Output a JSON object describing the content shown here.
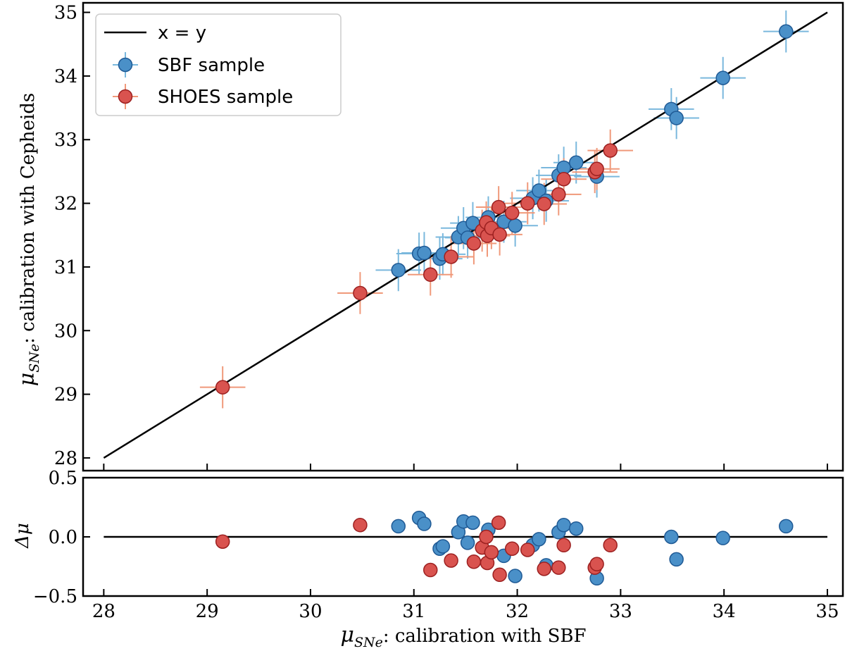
{
  "chart_data": [
    {
      "type": "scatter",
      "panel": "main",
      "title": "",
      "xlabel": "",
      "ylabel": "μSNe: calibration with Cepheids",
      "ylabel_parts": {
        "mu": "μ",
        "sub": "SNe",
        "rest": ": calibration with Cepheids"
      },
      "xlim": [
        27.8,
        35.15
      ],
      "ylim": [
        27.8,
        35.15
      ],
      "xticks": [
        28,
        29,
        30,
        31,
        32,
        33,
        34,
        35
      ],
      "yticks": [
        28,
        29,
        30,
        31,
        32,
        33,
        34,
        35
      ],
      "show_x_tick_labels": false,
      "reference_line": {
        "label": "x = y",
        "x": [
          28,
          35
        ],
        "y": [
          28,
          35
        ],
        "color": "#000000"
      },
      "legend": {
        "placement": "top-left",
        "entries": [
          {
            "label": "x = y",
            "kind": "line",
            "color": "#000000"
          },
          {
            "label": "SBF sample",
            "kind": "marker",
            "series": "SBF sample"
          },
          {
            "label": "SHOES sample",
            "kind": "marker",
            "series": "SHOES sample"
          }
        ]
      },
      "series": [
        {
          "name": "SBF sample",
          "marker_color": "#4a90c8",
          "edge_color": "#1f5a95",
          "error_color": "#7ab8dd",
          "points": [
            {
              "x": 30.85,
              "y": 30.95,
              "xerr": 0.22,
              "yerr": 0.33
            },
            {
              "x": 31.05,
              "y": 31.21,
              "xerr": 0.22,
              "yerr": 0.33
            },
            {
              "x": 31.1,
              "y": 31.22,
              "xerr": 0.22,
              "yerr": 0.33
            },
            {
              "x": 31.25,
              "y": 31.13,
              "xerr": 0.22,
              "yerr": 0.33
            },
            {
              "x": 31.28,
              "y": 31.2,
              "xerr": 0.22,
              "yerr": 0.33
            },
            {
              "x": 31.43,
              "y": 31.47,
              "xerr": 0.22,
              "yerr": 0.33
            },
            {
              "x": 31.48,
              "y": 31.61,
              "xerr": 0.22,
              "yerr": 0.33
            },
            {
              "x": 31.52,
              "y": 31.46,
              "xerr": 0.22,
              "yerr": 0.33
            },
            {
              "x": 31.57,
              "y": 31.69,
              "xerr": 0.22,
              "yerr": 0.33
            },
            {
              "x": 31.72,
              "y": 31.78,
              "xerr": 0.22,
              "yerr": 0.33
            },
            {
              "x": 31.87,
              "y": 31.71,
              "xerr": 0.22,
              "yerr": 0.33
            },
            {
              "x": 31.98,
              "y": 31.65,
              "xerr": 0.22,
              "yerr": 0.33
            },
            {
              "x": 32.15,
              "y": 32.08,
              "xerr": 0.22,
              "yerr": 0.33
            },
            {
              "x": 32.21,
              "y": 32.2,
              "xerr": 0.22,
              "yerr": 0.33
            },
            {
              "x": 32.28,
              "y": 32.04,
              "xerr": 0.22,
              "yerr": 0.33
            },
            {
              "x": 32.4,
              "y": 32.44,
              "xerr": 0.22,
              "yerr": 0.33
            },
            {
              "x": 32.45,
              "y": 32.56,
              "xerr": 0.22,
              "yerr": 0.33
            },
            {
              "x": 32.57,
              "y": 32.64,
              "xerr": 0.22,
              "yerr": 0.33
            },
            {
              "x": 32.77,
              "y": 32.42,
              "xerr": 0.22,
              "yerr": 0.33
            },
            {
              "x": 33.49,
              "y": 33.48,
              "xerr": 0.22,
              "yerr": 0.33
            },
            {
              "x": 33.54,
              "y": 33.34,
              "xerr": 0.22,
              "yerr": 0.33
            },
            {
              "x": 33.99,
              "y": 33.97,
              "xerr": 0.22,
              "yerr": 0.33
            },
            {
              "x": 34.6,
              "y": 34.7,
              "xerr": 0.22,
              "yerr": 0.33
            }
          ]
        },
        {
          "name": "SHOES sample",
          "marker_color": "#d9534f",
          "edge_color": "#9c2020",
          "error_color": "#f0997a",
          "points": [
            {
              "x": 29.15,
              "y": 29.11,
              "xerr": 0.22,
              "yerr": 0.33
            },
            {
              "x": 30.48,
              "y": 30.59,
              "xerr": 0.22,
              "yerr": 0.33
            },
            {
              "x": 31.16,
              "y": 30.88,
              "xerr": 0.22,
              "yerr": 0.33
            },
            {
              "x": 31.36,
              "y": 31.16,
              "xerr": 0.22,
              "yerr": 0.33
            },
            {
              "x": 31.58,
              "y": 31.37,
              "xerr": 0.22,
              "yerr": 0.33
            },
            {
              "x": 31.66,
              "y": 31.57,
              "xerr": 0.22,
              "yerr": 0.33
            },
            {
              "x": 31.7,
              "y": 31.7,
              "xerr": 0.22,
              "yerr": 0.33
            },
            {
              "x": 31.71,
              "y": 31.49,
              "xerr": 0.22,
              "yerr": 0.33
            },
            {
              "x": 31.75,
              "y": 31.61,
              "xerr": 0.22,
              "yerr": 0.33
            },
            {
              "x": 31.82,
              "y": 31.94,
              "xerr": 0.22,
              "yerr": 0.33
            },
            {
              "x": 31.83,
              "y": 31.51,
              "xerr": 0.22,
              "yerr": 0.33
            },
            {
              "x": 31.95,
              "y": 31.85,
              "xerr": 0.22,
              "yerr": 0.33
            },
            {
              "x": 32.1,
              "y": 32.0,
              "xerr": 0.22,
              "yerr": 0.33
            },
            {
              "x": 32.26,
              "y": 31.99,
              "xerr": 0.22,
              "yerr": 0.33
            },
            {
              "x": 32.4,
              "y": 32.14,
              "xerr": 0.22,
              "yerr": 0.33
            },
            {
              "x": 32.45,
              "y": 32.38,
              "xerr": 0.22,
              "yerr": 0.33
            },
            {
              "x": 32.75,
              "y": 32.49,
              "xerr": 0.22,
              "yerr": 0.33
            },
            {
              "x": 32.77,
              "y": 32.54,
              "xerr": 0.22,
              "yerr": 0.33
            },
            {
              "x": 32.9,
              "y": 32.83,
              "xerr": 0.22,
              "yerr": 0.33
            }
          ]
        }
      ]
    },
    {
      "type": "scatter",
      "panel": "residual",
      "title": "",
      "xlabel": "μSNe: calibration with SBF",
      "xlabel_parts": {
        "mu": "μ",
        "sub": "SNe",
        "rest": ": calibration with SBF"
      },
      "ylabel": "Δμ",
      "xlim": [
        27.8,
        35.15
      ],
      "ylim": [
        -0.5,
        0.5
      ],
      "xticks": [
        28,
        29,
        30,
        31,
        32,
        33,
        34,
        35
      ],
      "yticks": [
        -0.5,
        0.0,
        0.5
      ],
      "ytick_labels": [
        "−0.5",
        "0.0",
        "0.5"
      ],
      "zero_line": {
        "y": 0,
        "x": [
          28,
          35
        ],
        "color": "#000000"
      },
      "series": [
        {
          "name": "SBF sample",
          "marker_color": "#4a90c8",
          "edge_color": "#1f5a95",
          "points": [
            {
              "x": 30.85,
              "y": 0.09
            },
            {
              "x": 31.05,
              "y": 0.16
            },
            {
              "x": 31.1,
              "y": 0.11
            },
            {
              "x": 31.25,
              "y": -0.1
            },
            {
              "x": 31.28,
              "y": -0.08
            },
            {
              "x": 31.43,
              "y": 0.04
            },
            {
              "x": 31.48,
              "y": 0.13
            },
            {
              "x": 31.52,
              "y": -0.05
            },
            {
              "x": 31.57,
              "y": 0.12
            },
            {
              "x": 31.72,
              "y": 0.06
            },
            {
              "x": 31.87,
              "y": -0.16
            },
            {
              "x": 31.98,
              "y": -0.33
            },
            {
              "x": 32.15,
              "y": -0.07
            },
            {
              "x": 32.21,
              "y": -0.02
            },
            {
              "x": 32.28,
              "y": -0.24
            },
            {
              "x": 32.4,
              "y": 0.04
            },
            {
              "x": 32.45,
              "y": 0.1
            },
            {
              "x": 32.57,
              "y": 0.07
            },
            {
              "x": 32.77,
              "y": -0.35
            },
            {
              "x": 33.49,
              "y": -0.0
            },
            {
              "x": 33.54,
              "y": -0.19
            },
            {
              "x": 33.99,
              "y": -0.01
            },
            {
              "x": 34.6,
              "y": 0.09
            }
          ]
        },
        {
          "name": "SHOES sample",
          "marker_color": "#d9534f",
          "edge_color": "#9c2020",
          "points": [
            {
              "x": 29.15,
              "y": -0.04
            },
            {
              "x": 30.48,
              "y": 0.1
            },
            {
              "x": 31.16,
              "y": -0.28
            },
            {
              "x": 31.36,
              "y": -0.2
            },
            {
              "x": 31.58,
              "y": -0.21
            },
            {
              "x": 31.66,
              "y": -0.09
            },
            {
              "x": 31.7,
              "y": 0.0
            },
            {
              "x": 31.71,
              "y": -0.22
            },
            {
              "x": 31.75,
              "y": -0.13
            },
            {
              "x": 31.82,
              "y": 0.12
            },
            {
              "x": 31.83,
              "y": -0.32
            },
            {
              "x": 31.95,
              "y": -0.1
            },
            {
              "x": 32.1,
              "y": -0.11
            },
            {
              "x": 32.26,
              "y": -0.27
            },
            {
              "x": 32.4,
              "y": -0.26
            },
            {
              "x": 32.45,
              "y": -0.07
            },
            {
              "x": 32.75,
              "y": -0.26
            },
            {
              "x": 32.77,
              "y": -0.23
            },
            {
              "x": 32.9,
              "y": -0.07
            }
          ]
        }
      ]
    }
  ]
}
